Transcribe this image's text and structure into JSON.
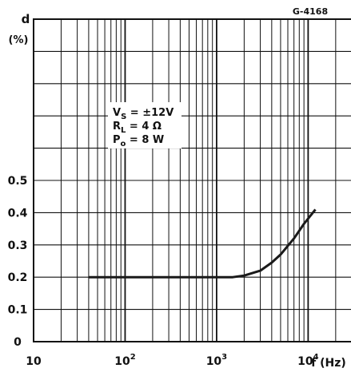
{
  "figure_id": "G-4168",
  "chart_data": {
    "type": "line",
    "ylabel": "d",
    "yunit": "(%)",
    "xlabel": "f (Hz)",
    "x_scale": "log",
    "xlim": [
      10,
      30000
    ],
    "ylim": [
      0,
      1.0
    ],
    "grid": true,
    "x_tick_labels": [
      {
        "value": 10,
        "base": "10",
        "exp": ""
      },
      {
        "value": 100,
        "base": "10",
        "exp": "2"
      },
      {
        "value": 1000,
        "base": "10",
        "exp": "3"
      },
      {
        "value": 10000,
        "base": "10",
        "exp": "4"
      }
    ],
    "y_tick_labels": [
      "0",
      "0.1",
      "0.2",
      "0.3",
      "0.4",
      "0.5"
    ],
    "y_tick_values": [
      0,
      0.1,
      0.2,
      0.3,
      0.4,
      0.5
    ],
    "conditions": [
      {
        "sym": "V",
        "sub": "S",
        "rest": " = ±12V"
      },
      {
        "sym": "R",
        "sub": "L",
        "rest": " = 4 Ω"
      },
      {
        "sym": "P",
        "sub": "o",
        "rest": " = 8 W"
      }
    ],
    "series": [
      {
        "x": [
          40,
          60,
          100,
          200,
          500,
          1000,
          1500,
          2000,
          3000,
          4000,
          5000,
          7000,
          9000,
          12000
        ],
        "y": [
          0.2,
          0.2,
          0.2,
          0.2,
          0.2,
          0.2,
          0.2,
          0.205,
          0.22,
          0.245,
          0.27,
          0.32,
          0.365,
          0.41
        ]
      }
    ]
  }
}
